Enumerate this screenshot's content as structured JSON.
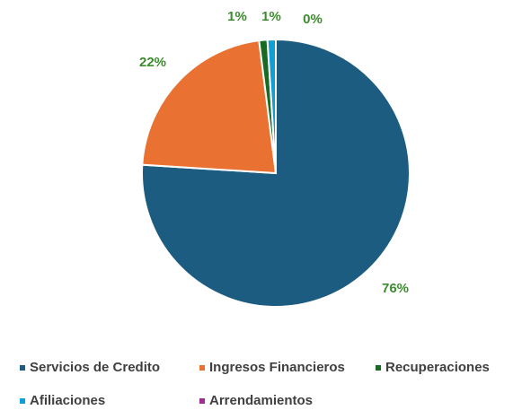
{
  "chart_data": {
    "type": "pie",
    "categories": [
      "Servicios de Credito",
      "Ingresos Financieros",
      "Recuperaciones",
      "Afiliaciones",
      "Arrendamientos"
    ],
    "values": [
      76,
      22,
      1,
      1,
      0
    ],
    "value_labels": [
      "76%",
      "22%",
      "1%",
      "1%",
      "0%"
    ],
    "colors": [
      "#1b5c80",
      "#e97132",
      "#196b24",
      "#0f9ed5",
      "#a02b93"
    ],
    "legend": "bottom"
  }
}
